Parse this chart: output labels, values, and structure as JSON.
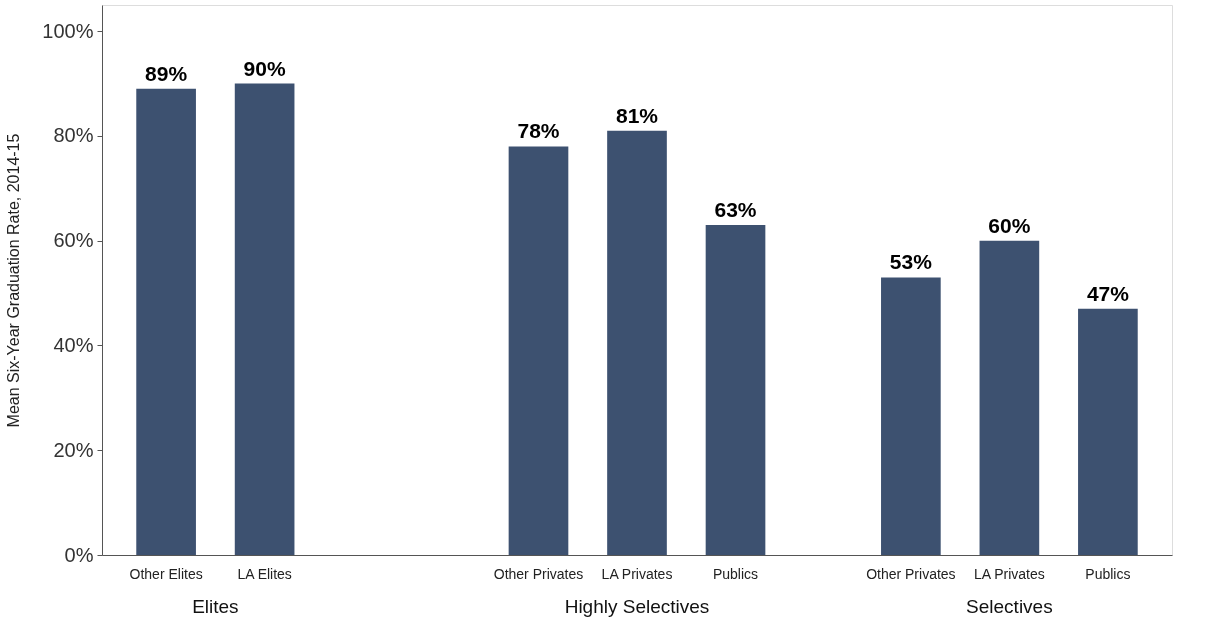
{
  "chart_data": {
    "type": "bar",
    "ylabel": "Mean Six-Year Graduation Rate, 2014-15",
    "categories": [
      "Other Elites",
      "LA Elites",
      null,
      "Other Privates",
      "LA Privates",
      "Publics",
      "Other Privates",
      "LA Privates",
      "Publics"
    ],
    "values": [
      89,
      90,
      null,
      78,
      81,
      63,
      53,
      60,
      47
    ],
    "value_labels": [
      "89%",
      "90%",
      null,
      "78%",
      "81%",
      "63%",
      "53%",
      "60%",
      "47%"
    ],
    "color": "#3d5170",
    "annotations": [
      "Elites",
      "Highly Selectives",
      "Selectives"
    ],
    "ylim": [
      0,
      105
    ],
    "yticks": [
      {
        "value": 0,
        "label": "0%"
      },
      {
        "value": 20,
        "label": "20%"
      },
      {
        "value": 40,
        "label": "40%"
      },
      {
        "value": 60,
        "label": "60%"
      },
      {
        "value": 80,
        "label": "80%"
      },
      {
        "value": 100,
        "label": "100%"
      }
    ],
    "grid": false
  }
}
